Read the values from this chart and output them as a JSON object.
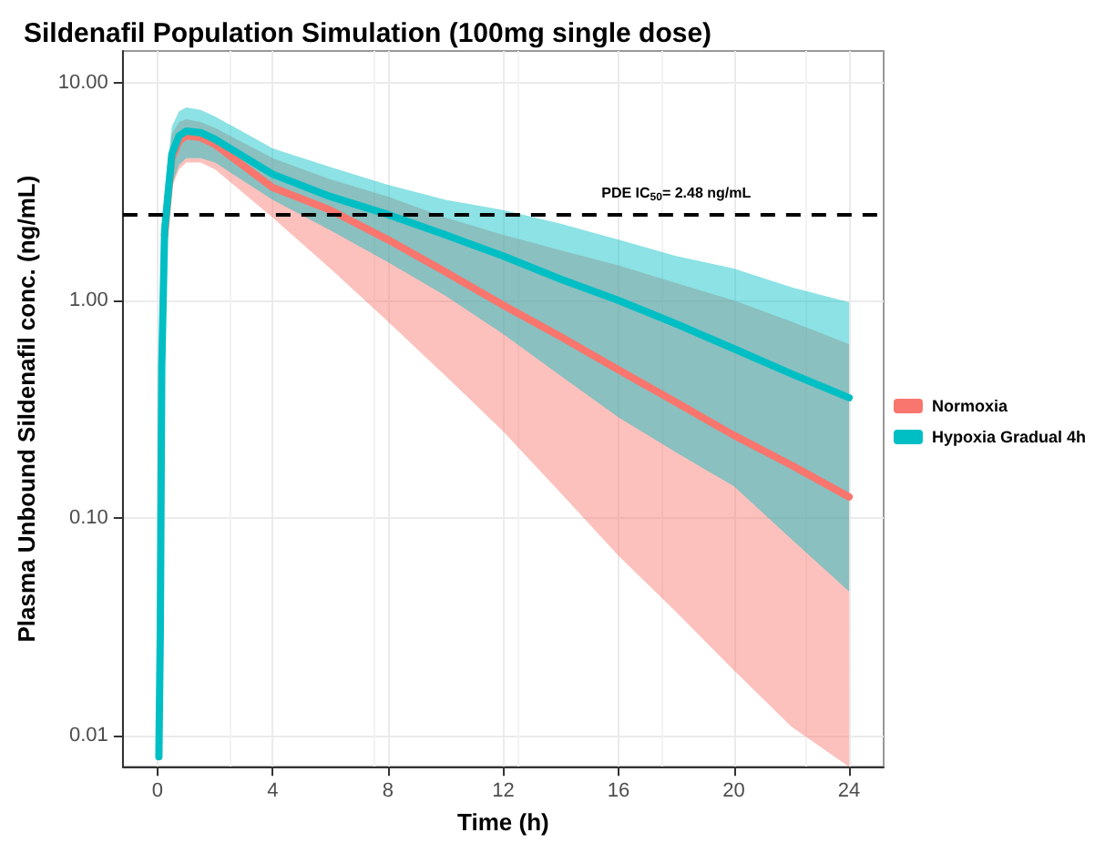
{
  "chart_data": {
    "type": "line",
    "title": "Sildenafil Population Simulation (100mg single dose)",
    "xlabel": "Time (h)",
    "ylabel": "Plasma Unbound Sildenafil conc. (ng/mL)",
    "x": [
      0.05,
      0.1,
      0.15,
      0.25,
      0.5,
      0.75,
      1,
      1.5,
      2,
      4,
      6,
      8,
      10,
      12,
      14,
      16,
      18,
      20,
      22,
      24
    ],
    "series": [
      {
        "name": "Normoxia",
        "color": "#f8766d",
        "values": [
          null,
          null,
          null,
          2.0,
          4.5,
          5.4,
          5.7,
          5.6,
          5.2,
          3.3,
          2.6,
          1.9,
          1.35,
          0.95,
          0.68,
          0.48,
          0.34,
          0.24,
          0.175,
          0.125
        ],
        "lower": [
          0.0075,
          0.02,
          0.3,
          1.3,
          3.3,
          4.0,
          4.3,
          4.3,
          4.0,
          2.4,
          1.4,
          0.8,
          0.45,
          0.25,
          0.13,
          0.067,
          0.037,
          0.02,
          0.011,
          0.0072
        ],
        "upper": [
          0.009,
          0.045,
          0.8,
          3.0,
          5.8,
          6.6,
          6.8,
          6.6,
          6.2,
          4.5,
          3.6,
          3.0,
          2.4,
          2.0,
          1.7,
          1.45,
          1.2,
          1.0,
          0.8,
          0.63
        ]
      },
      {
        "name": "Hypoxia Gradual 4h",
        "color": "#00bfc4",
        "values": [
          0.008,
          0.03,
          0.5,
          2.1,
          4.7,
          5.7,
          6.0,
          5.9,
          5.5,
          3.8,
          3.0,
          2.48,
          2.0,
          1.6,
          1.25,
          1.0,
          0.78,
          0.6,
          0.46,
          0.357
        ],
        "lower": [
          0.0075,
          0.02,
          0.3,
          1.4,
          3.4,
          4.2,
          4.5,
          4.5,
          4.3,
          2.9,
          2.1,
          1.5,
          1.05,
          0.7,
          0.45,
          0.29,
          0.2,
          0.14,
          0.08,
          0.046
        ],
        "upper": [
          0.009,
          0.045,
          0.8,
          3.2,
          6.3,
          7.4,
          7.7,
          7.5,
          7.0,
          5.0,
          4.1,
          3.4,
          2.9,
          2.6,
          2.25,
          1.9,
          1.6,
          1.4,
          1.15,
          0.98
        ]
      }
    ],
    "log": "y",
    "xlim": [
      -1.2,
      25.2
    ],
    "xticks": [
      0,
      4,
      8,
      12,
      16,
      20,
      24
    ],
    "ylim": [
      0.0072,
      14
    ],
    "yticks": [
      {
        "value": 0.01,
        "label": "0.01"
      },
      {
        "value": 0.1,
        "label": "0.10"
      },
      {
        "value": 1,
        "label": "1.00"
      },
      {
        "value": 10,
        "label": "10.00"
      }
    ],
    "ref_lines": [
      {
        "axis": "y",
        "value": 2.48,
        "color": "#000000",
        "line_style": "dashed"
      }
    ],
    "annotations": [
      {
        "text": "PDE IC$_{50}$= 2.48 ng/mL",
        "x": 18,
        "y": 2.48
      }
    ],
    "grid": true,
    "legend": "right",
    "marker": "none",
    "line_style": "solid"
  }
}
